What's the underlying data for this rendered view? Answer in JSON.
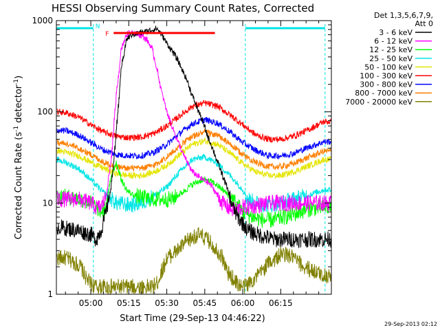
{
  "chart_data": {
    "type": "line",
    "title": "HESSI Observing Summary Count Rates, Corrected",
    "xlabel": "Start Time (29-Sep-13 04:46:22)",
    "ylabel": "Corrected Count Rate (s^-1 detector^-1)",
    "ylabel_parts": [
      "Corrected Count Rate (s",
      "-1",
      " detector",
      "-1",
      ")"
    ],
    "y_scale": "log",
    "ylim": [
      1,
      1000
    ],
    "xlim_min": [
      286.4,
      395.0
    ],
    "x_ticks": [
      {
        "min": 300,
        "label": "05:00"
      },
      {
        "min": 315,
        "label": "05:15"
      },
      {
        "min": 330,
        "label": "05:30"
      },
      {
        "min": 345,
        "label": "05:45"
      },
      {
        "min": 360,
        "label": "06:00"
      },
      {
        "min": 375,
        "label": "06:15"
      }
    ],
    "y_ticks": [
      {
        "value": 1,
        "label": "1"
      },
      {
        "value": 10,
        "label": "10"
      },
      {
        "value": 100,
        "label": "100"
      },
      {
        "value": 1000,
        "label": "1000"
      }
    ],
    "legend_header": [
      "Det 1,3,5,6,7,9,",
      "Att 0"
    ],
    "legend_position": "right",
    "timestamp": "29-Sep-2013 02:12",
    "markers": [
      {
        "label": "N",
        "color": "#00e5e5"
      },
      {
        "label": "F",
        "color": "#ff0000"
      }
    ],
    "night_intervals_min": [
      [
        286.4,
        301.0
      ],
      [
        361.0,
        392.5
      ]
    ],
    "flare_flag_interval_min": [
      309.0,
      349.0
    ],
    "series": [
      {
        "name": "3 - 6 keV",
        "color": "#000000",
        "x": [
          286.4,
          295,
          300,
          302,
          304,
          306,
          308,
          310,
          312,
          314,
          316,
          318,
          320,
          322,
          324,
          326,
          328,
          330,
          332,
          334,
          336,
          338,
          340,
          342,
          344,
          346,
          348,
          350,
          352,
          354,
          356,
          358,
          360,
          362,
          366,
          372,
          378,
          385,
          392
        ],
        "y": [
          5.5,
          5,
          4.5,
          4,
          5,
          8,
          15,
          60,
          300,
          620,
          700,
          720,
          740,
          760,
          790,
          820,
          700,
          560,
          470,
          380,
          290,
          220,
          150,
          110,
          80,
          55,
          40,
          28,
          20,
          14,
          9,
          7,
          6,
          5,
          4.5,
          4,
          4,
          4,
          4
        ]
      },
      {
        "name": "6 - 12 keV",
        "color": "#ff00ff",
        "x": [
          286.4,
          295,
          300,
          302,
          304,
          306,
          308,
          310,
          312,
          314,
          316,
          318,
          320,
          322,
          324,
          326,
          328,
          330,
          332,
          334,
          336,
          338,
          340,
          342,
          344,
          346,
          348,
          350,
          352,
          354,
          356,
          358,
          360,
          362,
          366,
          372,
          378,
          385,
          392
        ],
        "y": [
          11,
          11,
          10,
          9,
          9,
          12,
          30,
          150,
          500,
          700,
          760,
          720,
          680,
          620,
          500,
          300,
          160,
          100,
          70,
          50,
          36,
          28,
          22,
          20,
          18,
          17,
          15,
          12,
          10,
          9,
          8.5,
          8.5,
          9,
          9,
          9.5,
          10,
          10,
          10,
          10
        ]
      },
      {
        "name": "12 - 25 keV",
        "color": "#00ff00",
        "x": [
          286.4,
          292,
          296,
          300,
          302,
          304,
          306,
          308,
          310,
          312,
          314,
          316,
          318,
          320,
          324,
          328,
          332,
          336,
          340,
          344,
          348,
          352,
          356,
          360,
          364,
          368,
          372,
          376,
          380,
          385,
          392
        ],
        "y": [
          12,
          11.5,
          11,
          10,
          9,
          8,
          9,
          20,
          28,
          18,
          14,
          12.5,
          12,
          11.5,
          11,
          11,
          11,
          13,
          16,
          18,
          17,
          14,
          11,
          8,
          7,
          6.5,
          6.5,
          7,
          7.5,
          8.5,
          9
        ]
      },
      {
        "name": "25 - 50 keV",
        "color": "#00e5e5",
        "x": [
          286.4,
          290,
          295,
          300,
          305,
          310,
          315,
          320,
          325,
          330,
          335,
          340,
          345,
          350,
          355,
          360,
          362,
          365,
          370,
          375,
          380,
          385,
          392
        ],
        "y": [
          30,
          28,
          24,
          18,
          13,
          10,
          9.5,
          10,
          12,
          15,
          22,
          30,
          32,
          27,
          20,
          14,
          11,
          10,
          9.5,
          10,
          11,
          12,
          14
        ]
      },
      {
        "name": "50 - 100 keV",
        "color": "#e5e500",
        "x": [
          286.4,
          290,
          295,
          300,
          305,
          310,
          315,
          320,
          325,
          330,
          335,
          340,
          345,
          350,
          355,
          360,
          365,
          370,
          375,
          380,
          385,
          392
        ],
        "y": [
          38,
          36,
          33,
          28,
          24,
          21,
          20,
          20,
          22,
          26,
          34,
          44,
          48,
          44,
          35,
          27,
          22,
          20,
          20,
          22,
          25,
          30
        ]
      },
      {
        "name": "100 - 300 keV",
        "color": "#ff0000",
        "x": [
          286.4,
          290,
          295,
          300,
          305,
          310,
          315,
          320,
          325,
          330,
          335,
          340,
          345,
          350,
          355,
          360,
          365,
          370,
          375,
          380,
          385,
          392
        ],
        "y": [
          100,
          98,
          88,
          72,
          60,
          54,
          52,
          53,
          58,
          70,
          90,
          115,
          125,
          115,
          92,
          72,
          56,
          50,
          50,
          54,
          62,
          78
        ]
      },
      {
        "name": "300 - 800 keV",
        "color": "#0000ff",
        "x": [
          286.4,
          290,
          295,
          300,
          305,
          310,
          315,
          320,
          325,
          330,
          335,
          340,
          345,
          350,
          355,
          360,
          365,
          370,
          375,
          380,
          385,
          392
        ],
        "y": [
          63,
          62,
          56,
          46,
          38,
          34,
          33,
          33,
          36,
          44,
          58,
          74,
          82,
          75,
          60,
          46,
          38,
          33,
          33,
          35,
          40,
          47
        ]
      },
      {
        "name": "800 - 7000 keV",
        "color": "#ff8000",
        "x": [
          286.4,
          290,
          295,
          300,
          305,
          310,
          315,
          320,
          325,
          330,
          335,
          340,
          345,
          350,
          355,
          360,
          365,
          370,
          375,
          380,
          385,
          392
        ],
        "y": [
          46,
          45,
          40,
          34,
          28,
          25,
          24,
          24,
          26,
          32,
          42,
          54,
          60,
          55,
          44,
          34,
          28,
          25,
          25,
          27,
          31,
          37
        ]
      },
      {
        "name": "7000 - 20000 keV",
        "color": "#808000",
        "x": [
          286.4,
          290,
          294,
          296,
          298,
          300,
          302,
          304,
          306,
          310,
          315,
          320,
          324,
          326,
          330,
          334,
          338,
          342,
          346,
          350,
          352,
          354,
          356,
          358,
          360,
          362,
          366,
          370,
          376,
          380,
          384,
          388,
          392
        ],
        "y": [
          2.5,
          2.5,
          2.2,
          2.0,
          1.5,
          1.3,
          1.2,
          1.2,
          1.2,
          1.2,
          1.2,
          1.2,
          1.2,
          1.3,
          2.5,
          3.0,
          3.8,
          4.5,
          4.0,
          3.0,
          2.5,
          1.7,
          1.5,
          1.3,
          1.2,
          1.3,
          1.6,
          2.2,
          2.8,
          2.5,
          2.0,
          1.8,
          1.6
        ]
      }
    ]
  }
}
